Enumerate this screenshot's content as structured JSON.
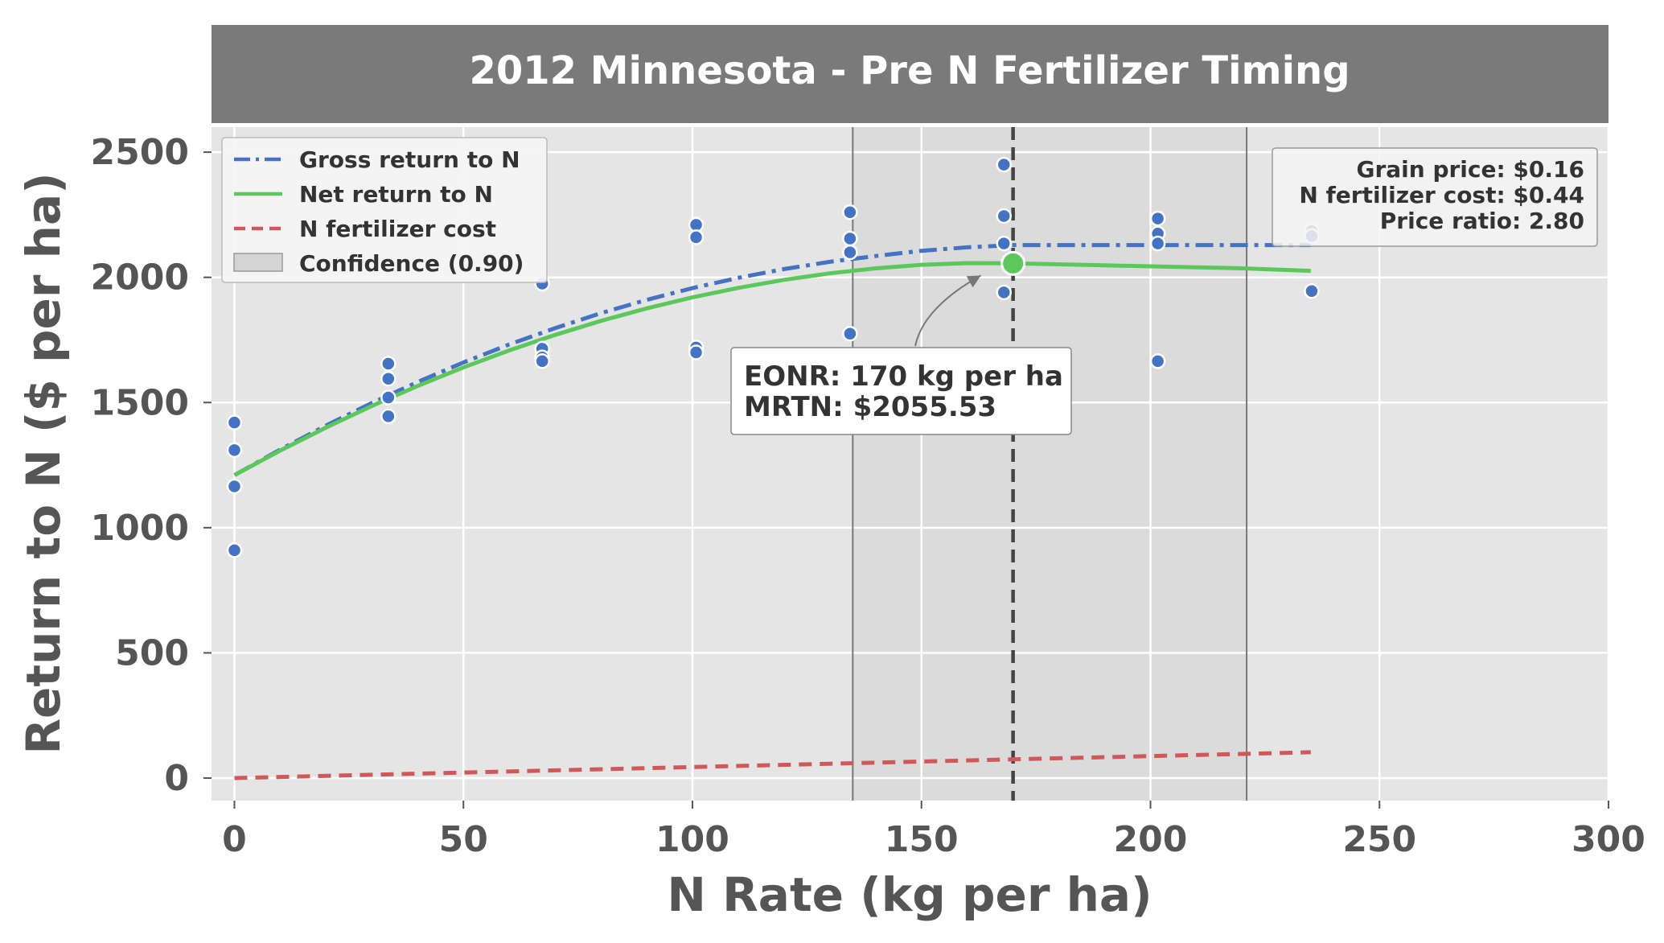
{
  "chart_data": {
    "type": "scatter",
    "title": "2012 Minnesota - Pre N Fertilizer Timing",
    "xlabel": "N Rate (kg per ha)",
    "ylabel": "Return to N ($ per ha)",
    "xlim": [
      -5,
      300
    ],
    "ylim": [
      -90,
      2600
    ],
    "xticks": [
      0,
      50,
      100,
      150,
      200,
      250,
      300
    ],
    "yticks": [
      0,
      500,
      1000,
      1500,
      2000,
      2500
    ],
    "grid": true,
    "legend_position": "top-left",
    "colors": {
      "gross": "#4472c4",
      "net": "#5cc85c",
      "cost": "#d05858",
      "points": "#4472c4",
      "confidence": "#d9d9d9",
      "eonr_line": "#444444",
      "background": "#e5e5e5",
      "title_bar": "#7a7a7a"
    },
    "series": [
      {
        "name": "Gross return to N",
        "style": "dashdot",
        "x": [
          0,
          10,
          20,
          30,
          40,
          50,
          60,
          70,
          80,
          90,
          100,
          110,
          120,
          130,
          140,
          150,
          160,
          170,
          180,
          190,
          200,
          210,
          220,
          235
        ],
        "y": [
          1210,
          1312,
          1408,
          1498,
          1582,
          1660,
          1732,
          1797,
          1857,
          1910,
          1957,
          1998,
          2033,
          2062,
          2085,
          2106,
          2120,
          2129,
          2129,
          2129,
          2129,
          2129,
          2129,
          2129
        ]
      },
      {
        "name": "Net return to N",
        "style": "solid",
        "x": [
          0,
          10,
          20,
          30,
          40,
          50,
          60,
          70,
          80,
          90,
          100,
          110,
          120,
          130,
          140,
          150,
          160,
          170,
          180,
          190,
          200,
          210,
          220,
          235
        ],
        "y": [
          1210,
          1308,
          1400,
          1486,
          1566,
          1640,
          1708,
          1770,
          1826,
          1876,
          1920,
          1958,
          1990,
          2016,
          2036,
          2050,
          2057,
          2056,
          2052,
          2048,
          2044,
          2040,
          2036,
          2026
        ]
      },
      {
        "name": "N fertilizer cost",
        "style": "dashed",
        "x": [
          0,
          235
        ],
        "y": [
          0,
          103
        ]
      }
    ],
    "observations": {
      "x": [
        0,
        0,
        0,
        0,
        33.6,
        33.6,
        33.6,
        33.6,
        67.2,
        67.2,
        67.2,
        67.2,
        100.8,
        100.8,
        100.8,
        100.8,
        134.4,
        134.4,
        134.4,
        134.4,
        168,
        168,
        168,
        168,
        201.6,
        201.6,
        201.6,
        201.6,
        235.2,
        235.2,
        235.2,
        235.2
      ],
      "y": [
        1420,
        1310,
        1165,
        910,
        1655,
        1595,
        1520,
        1445,
        1975,
        1715,
        1680,
        1665,
        2210,
        2160,
        1720,
        1700,
        2260,
        2155,
        2100,
        1775,
        2450,
        2245,
        2135,
        1940,
        2235,
        2175,
        2135,
        1665,
        2335,
        2185,
        2165,
        1945
      ]
    },
    "confidence": {
      "label": "Confidence (0.90)",
      "lower": 135,
      "upper": 221
    },
    "eonr": {
      "x": 170,
      "y": 2055.53
    },
    "annotation": {
      "line1": "EONR: 170 kg per ha",
      "line2": "MRTN: $2055.53"
    },
    "info_box": {
      "line1": "Grain price: $0.16",
      "line2": "N fertilizer cost: $0.44",
      "line3": "Price ratio: 2.80"
    }
  }
}
